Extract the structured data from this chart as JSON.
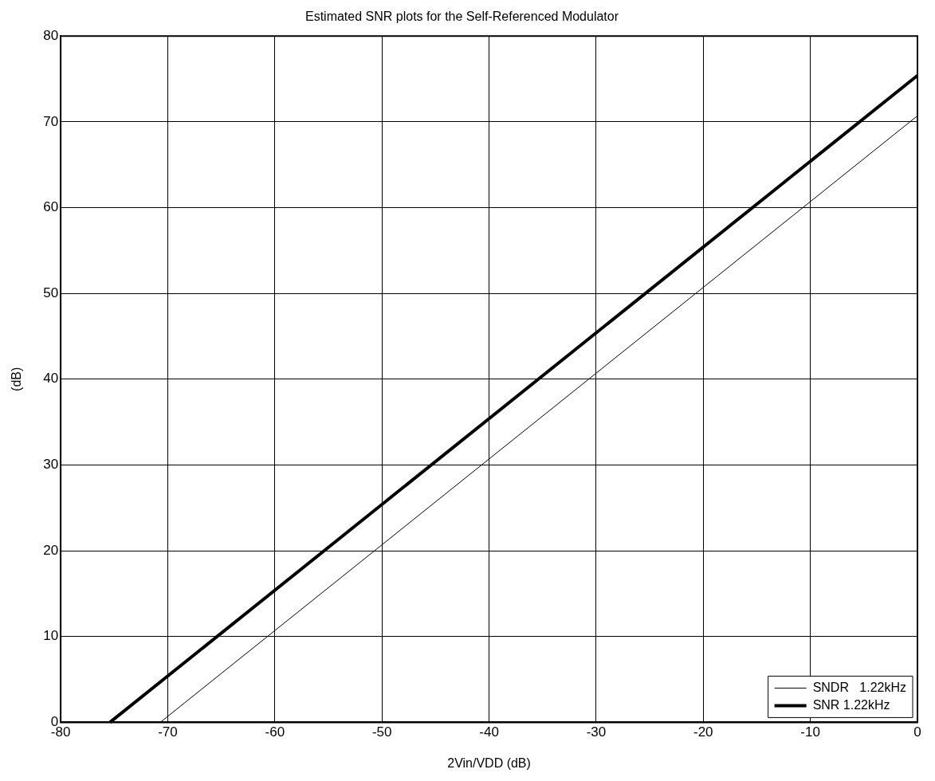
{
  "chart_data": {
    "type": "line",
    "title": "Estimated SNR plots for the Self-Referenced Modulator",
    "xlabel": "2Vin/VDD (dB)",
    "ylabel": "(dB)",
    "series": [
      {
        "name": "SNDR   1.22kHz",
        "color": "#000000",
        "x": [
          -70.7,
          0
        ],
        "values": [
          0,
          70.7
        ]
      },
      {
        "name": "SNR 1.22kHz",
        "color": "#000000",
        "x": [
          -75.4,
          0
        ],
        "values": [
          0,
          75.4
        ]
      }
    ],
    "xlim": [
      -80,
      0
    ],
    "xticks": [
      -80,
      -70,
      -60,
      -50,
      -40,
      -30,
      -20,
      -10,
      0
    ],
    "ylim": [
      0,
      80
    ],
    "yticks": [
      0,
      10,
      20,
      30,
      40,
      50,
      60,
      70,
      80
    ],
    "grid": true,
    "legend": "bottom right",
    "marker": "none",
    "line_style": "solid"
  }
}
